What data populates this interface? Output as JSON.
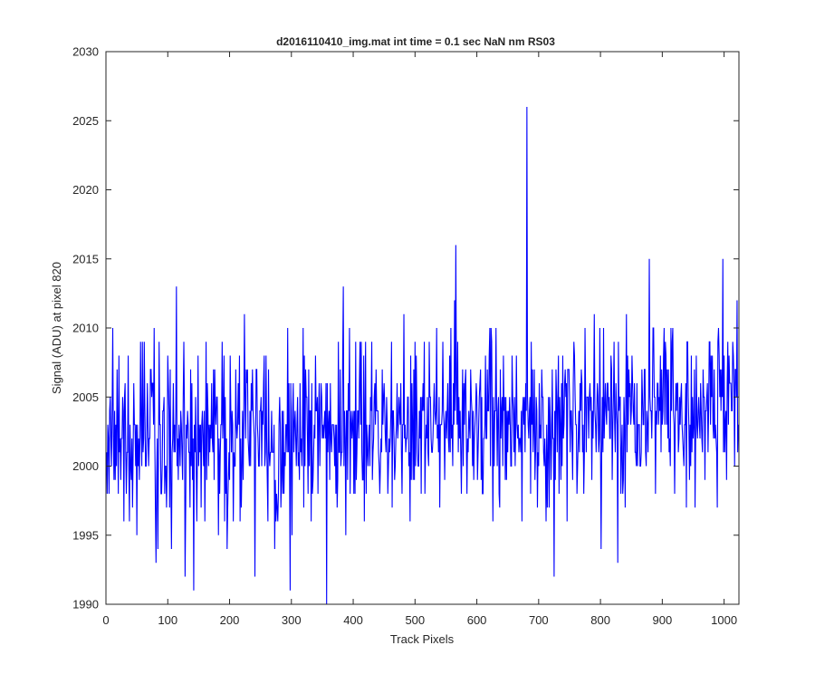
{
  "chart_data": {
    "type": "line",
    "title": "d2016110410_img.mat int time = 0.1 sec  NaN nm RS03",
    "xlabel": "Track Pixels",
    "ylabel": "Signal (ADU) at pixel 820",
    "xlim": [
      0,
      1024
    ],
    "ylim": [
      1990,
      2030
    ],
    "xticks": [
      0,
      100,
      200,
      300,
      400,
      500,
      600,
      700,
      800,
      900,
      1000
    ],
    "yticks": [
      1990,
      1995,
      2000,
      2005,
      2010,
      2015,
      2020,
      2025,
      2030
    ],
    "grid": false,
    "legend": "none",
    "series_color": "#0000ff",
    "noise_model": {
      "n_points": 1024,
      "baseline_start": 2002,
      "baseline_end": 2004.5,
      "std": 3.2
    },
    "highlights": [
      {
        "x": 10,
        "y": 2010
      },
      {
        "x": 80,
        "y": 1993
      },
      {
        "x": 113,
        "y": 2013
      },
      {
        "x": 127,
        "y": 1992
      },
      {
        "x": 141,
        "y": 1991
      },
      {
        "x": 240,
        "y": 1992
      },
      {
        "x": 297,
        "y": 1991
      },
      {
        "x": 356,
        "y": 1990
      },
      {
        "x": 383,
        "y": 2013
      },
      {
        "x": 565,
        "y": 2016
      },
      {
        "x": 680,
        "y": 2026
      },
      {
        "x": 724,
        "y": 1992
      },
      {
        "x": 827,
        "y": 1993
      },
      {
        "x": 878,
        "y": 2015
      },
      {
        "x": 997,
        "y": 2015
      }
    ]
  }
}
